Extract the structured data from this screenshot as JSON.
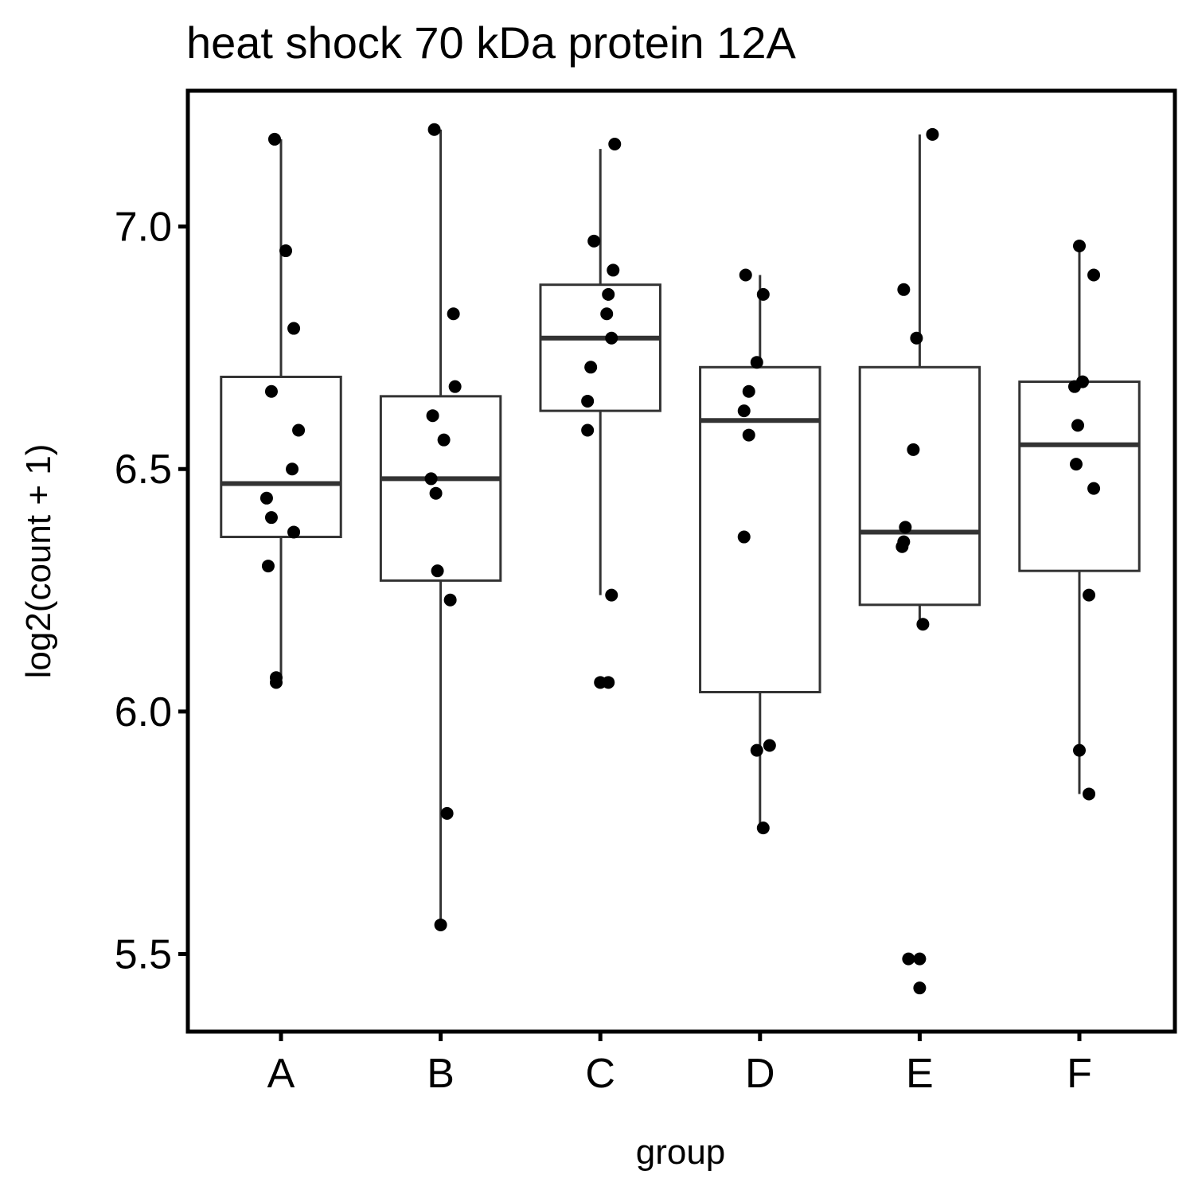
{
  "chart_data": {
    "type": "box",
    "title": "heat shock 70 kDa protein 12A",
    "xlabel": "group",
    "ylabel": "log2(count + 1)",
    "ylim": [
      5.34,
      7.28
    ],
    "yticks": [
      5.5,
      6.0,
      6.5,
      7.0
    ],
    "ytick_labels": [
      "5.5",
      "6.0",
      "6.5",
      "7.0"
    ],
    "categories": [
      "A",
      "B",
      "C",
      "D",
      "E",
      "F"
    ],
    "grid": false,
    "legend": "none",
    "boxes": [
      {
        "group": "A",
        "lower_whisker": 6.07,
        "q1": 6.36,
        "median": 6.47,
        "q3": 6.69,
        "upper_whisker": 7.18
      },
      {
        "group": "B",
        "lower_whisker": 5.56,
        "q1": 6.27,
        "median": 6.48,
        "q3": 6.65,
        "upper_whisker": 7.2
      },
      {
        "group": "C",
        "lower_whisker": 6.24,
        "q1": 6.62,
        "median": 6.77,
        "q3": 6.88,
        "upper_whisker": 7.16
      },
      {
        "group": "D",
        "lower_whisker": 5.76,
        "q1": 6.04,
        "median": 6.6,
        "q3": 6.71,
        "upper_whisker": 6.9
      },
      {
        "group": "E",
        "lower_whisker": 6.19,
        "q1": 6.22,
        "median": 6.37,
        "q3": 6.71,
        "upper_whisker": 7.19
      },
      {
        "group": "F",
        "lower_whisker": 5.83,
        "q1": 6.29,
        "median": 6.55,
        "q3": 6.68,
        "upper_whisker": 6.95
      }
    ],
    "points": [
      {
        "group": "A",
        "y": 7.18,
        "jitter": -0.04
      },
      {
        "group": "A",
        "y": 6.95,
        "jitter": 0.03
      },
      {
        "group": "A",
        "y": 6.79,
        "jitter": 0.08
      },
      {
        "group": "A",
        "y": 6.66,
        "jitter": -0.06
      },
      {
        "group": "A",
        "y": 6.58,
        "jitter": 0.11
      },
      {
        "group": "A",
        "y": 6.5,
        "jitter": 0.07
      },
      {
        "group": "A",
        "y": 6.44,
        "jitter": -0.09
      },
      {
        "group": "A",
        "y": 6.4,
        "jitter": -0.06
      },
      {
        "group": "A",
        "y": 6.37,
        "jitter": 0.08
      },
      {
        "group": "A",
        "y": 6.3,
        "jitter": -0.08
      },
      {
        "group": "A",
        "y": 6.07,
        "jitter": -0.03
      },
      {
        "group": "A",
        "y": 6.06,
        "jitter": -0.03
      },
      {
        "group": "B",
        "y": 7.2,
        "jitter": -0.04
      },
      {
        "group": "B",
        "y": 6.82,
        "jitter": 0.08
      },
      {
        "group": "B",
        "y": 6.67,
        "jitter": 0.09
      },
      {
        "group": "B",
        "y": 6.61,
        "jitter": -0.05
      },
      {
        "group": "B",
        "y": 6.56,
        "jitter": 0.02
      },
      {
        "group": "B",
        "y": 6.48,
        "jitter": -0.06
      },
      {
        "group": "B",
        "y": 6.45,
        "jitter": -0.03
      },
      {
        "group": "B",
        "y": 6.29,
        "jitter": -0.02
      },
      {
        "group": "B",
        "y": 6.23,
        "jitter": 0.06
      },
      {
        "group": "B",
        "y": 5.79,
        "jitter": 0.04
      },
      {
        "group": "B",
        "y": 5.56,
        "jitter": 0.0
      },
      {
        "group": "C",
        "y": 7.17,
        "jitter": 0.09
      },
      {
        "group": "C",
        "y": 6.97,
        "jitter": -0.04
      },
      {
        "group": "C",
        "y": 6.91,
        "jitter": 0.08
      },
      {
        "group": "C",
        "y": 6.86,
        "jitter": 0.05
      },
      {
        "group": "C",
        "y": 6.82,
        "jitter": 0.04
      },
      {
        "group": "C",
        "y": 6.77,
        "jitter": 0.07
      },
      {
        "group": "C",
        "y": 6.71,
        "jitter": -0.06
      },
      {
        "group": "C",
        "y": 6.64,
        "jitter": -0.08
      },
      {
        "group": "C",
        "y": 6.58,
        "jitter": -0.08
      },
      {
        "group": "C",
        "y": 6.24,
        "jitter": 0.07
      },
      {
        "group": "C",
        "y": 6.06,
        "jitter": 0.0
      },
      {
        "group": "C",
        "y": 6.06,
        "jitter": 0.05
      },
      {
        "group": "D",
        "y": 6.9,
        "jitter": -0.09
      },
      {
        "group": "D",
        "y": 6.86,
        "jitter": 0.02
      },
      {
        "group": "D",
        "y": 6.72,
        "jitter": -0.02
      },
      {
        "group": "D",
        "y": 6.66,
        "jitter": -0.07
      },
      {
        "group": "D",
        "y": 6.62,
        "jitter": -0.1
      },
      {
        "group": "D",
        "y": 6.57,
        "jitter": -0.07
      },
      {
        "group": "D",
        "y": 6.36,
        "jitter": -0.1
      },
      {
        "group": "D",
        "y": 5.93,
        "jitter": 0.06
      },
      {
        "group": "D",
        "y": 5.92,
        "jitter": -0.02
      },
      {
        "group": "D",
        "y": 5.76,
        "jitter": 0.02
      },
      {
        "group": "E",
        "y": 7.19,
        "jitter": 0.08
      },
      {
        "group": "E",
        "y": 6.87,
        "jitter": -0.1
      },
      {
        "group": "E",
        "y": 6.77,
        "jitter": -0.02
      },
      {
        "group": "E",
        "y": 6.54,
        "jitter": -0.04
      },
      {
        "group": "E",
        "y": 6.38,
        "jitter": -0.09
      },
      {
        "group": "E",
        "y": 6.35,
        "jitter": -0.1
      },
      {
        "group": "E",
        "y": 6.34,
        "jitter": -0.11
      },
      {
        "group": "E",
        "y": 6.18,
        "jitter": 0.02
      },
      {
        "group": "E",
        "y": 5.49,
        "jitter": -0.07
      },
      {
        "group": "E",
        "y": 5.49,
        "jitter": 0.0
      },
      {
        "group": "E",
        "y": 5.43,
        "jitter": 0.0
      },
      {
        "group": "F",
        "y": 6.96,
        "jitter": 0.0
      },
      {
        "group": "F",
        "y": 6.9,
        "jitter": 0.09
      },
      {
        "group": "F",
        "y": 6.68,
        "jitter": 0.02
      },
      {
        "group": "F",
        "y": 6.67,
        "jitter": -0.03
      },
      {
        "group": "F",
        "y": 6.59,
        "jitter": -0.01
      },
      {
        "group": "F",
        "y": 6.51,
        "jitter": -0.02
      },
      {
        "group": "F",
        "y": 6.46,
        "jitter": 0.09
      },
      {
        "group": "F",
        "y": 6.24,
        "jitter": 0.06
      },
      {
        "group": "F",
        "y": 5.92,
        "jitter": 0.0
      },
      {
        "group": "F",
        "y": 5.83,
        "jitter": 0.06
      }
    ]
  }
}
